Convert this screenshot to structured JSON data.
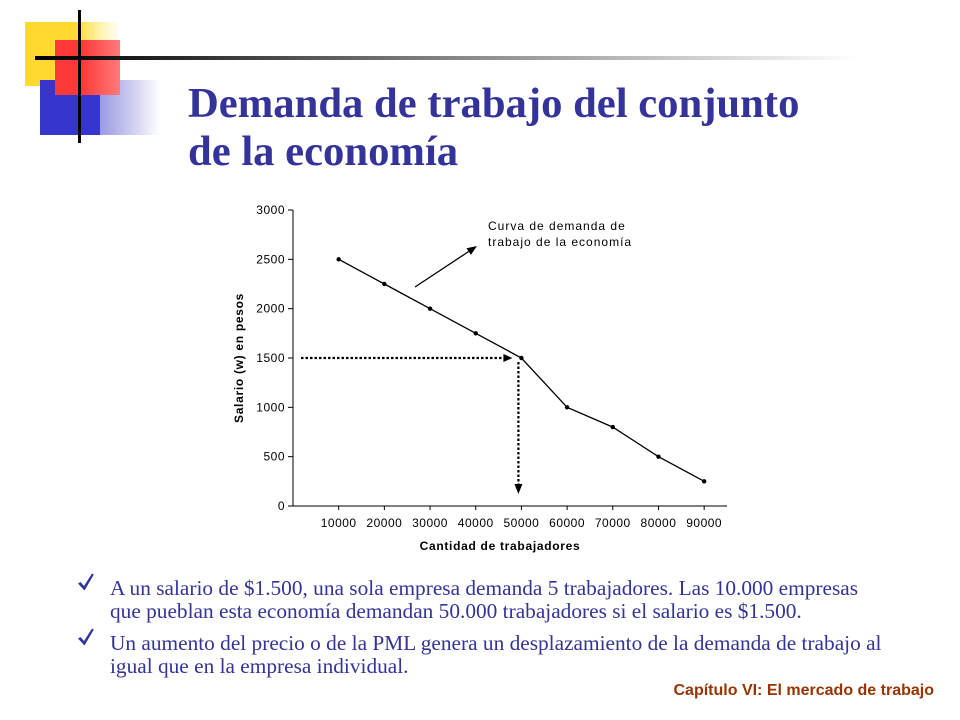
{
  "slide": {
    "title": "Demanda de trabajo del conjunto de la economía",
    "bullet_icon": "check-icon",
    "bullets": [
      {
        "text": "A un salario de $1.500, una sola empresa demanda 5 trabajadores. Las 10.000 empresas que pueblan esta economía demandan 50.000 trabajadores si el salario es $1.500."
      },
      {
        "text": "Un aumento del precio o de la PML genera un desplazamiento de la demanda de trabajo al igual que en la empresa individual."
      }
    ],
    "footer": "Capítulo VI: El mercado de trabajo"
  },
  "colors": {
    "title": "#333399",
    "text": "#333399",
    "footer": "#993300",
    "chart_line": "#000000",
    "deco_yellow": "#FFD92F",
    "deco_red": "#FF3838",
    "deco_blue": "#3636CF"
  },
  "chart_data": {
    "type": "line",
    "x": [
      10000,
      20000,
      30000,
      40000,
      50000,
      60000,
      70000,
      80000,
      90000
    ],
    "series": [
      {
        "values": [
          2500,
          2250,
          2000,
          1750,
          1500,
          1000,
          800,
          500,
          250
        ]
      }
    ],
    "xlabel": "Cantidad de trabajadores",
    "ylabel": "Salario (w) en pesos",
    "xticks": [
      10000,
      20000,
      30000,
      40000,
      50000,
      60000,
      70000,
      80000,
      90000
    ],
    "yticks": [
      0,
      500,
      1000,
      1500,
      2000,
      2500,
      3000
    ],
    "xlim": [
      0,
      95000
    ],
    "ylim": [
      0,
      3000
    ],
    "markers": true,
    "grid": false,
    "legend": "none",
    "annotation": {
      "text": "Curva de demanda de trabajo de la economía"
    },
    "reference_point": {
      "x": 50000,
      "y": 1500
    }
  }
}
